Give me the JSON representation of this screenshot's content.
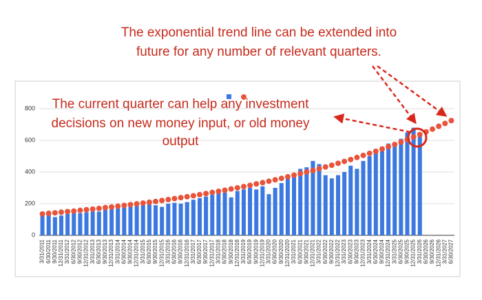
{
  "chart_data": {
    "type": "bar_line",
    "annotations": [
      "The exponential trend line can be extended into",
      "future for any number of relevant quarters.",
      "The current quarter can help any investment",
      "decisions on new money input, or old money",
      "output"
    ],
    "categories": [
      "3/31/2011",
      "6/30/2011",
      "9/30/2011",
      "12/31/2011",
      "3/31/2012",
      "6/30/2012",
      "9/30/2012",
      "12/31/2012",
      "3/31/2013",
      "6/30/2013",
      "9/30/2013",
      "12/31/2013",
      "3/31/2014",
      "6/30/2014",
      "9/30/2014",
      "12/31/2014",
      "3/31/2015",
      "6/30/2015",
      "9/30/2015",
      "12/31/2015",
      "3/31/2016",
      "6/30/2016",
      "9/30/2016",
      "12/31/2016",
      "3/31/2017",
      "6/30/2017",
      "9/30/2017",
      "12/31/2017",
      "3/31/2018",
      "6/30/2018",
      "9/30/2018",
      "12/31/2018",
      "3/31/2019",
      "6/30/2019",
      "9/30/2019",
      "12/31/2019",
      "3/31/2020",
      "6/30/2020",
      "9/30/2020",
      "12/31/2020",
      "3/31/2021",
      "6/30/2021",
      "9/30/2021",
      "12/31/2021",
      "3/31/2022",
      "6/30/2022",
      "9/30/2022",
      "12/31/2022",
      "3/31/2023",
      "6/30/2023",
      "9/30/2023",
      "12/31/2023",
      "3/31/2024",
      "6/30/2024",
      "9/30/2024",
      "12/31/2024",
      "3/31/2025",
      "6/30/2025",
      "9/30/2025",
      "12/31/2025",
      "3/31/2026",
      "6/30/2026",
      "9/30/2026",
      "12/31/2026",
      "3/31/2027",
      "6/30/2027"
    ],
    "series": [
      {
        "type": "bar",
        "color": "#3b78e0",
        "values": [
          125,
          130,
          115,
          125,
          135,
          140,
          140,
          145,
          150,
          150,
          160,
          165,
          170,
          175,
          180,
          185,
          190,
          195,
          190,
          180,
          200,
          205,
          200,
          210,
          225,
          235,
          245,
          255,
          265,
          270,
          240,
          280,
          290,
          300,
          290,
          310,
          260,
          300,
          330,
          360,
          390,
          420,
          430,
          470,
          450,
          380,
          360,
          380,
          400,
          440,
          420,
          470,
          500,
          540,
          560,
          580,
          580,
          610,
          650,
          680,
          640,
          null,
          null,
          null,
          null,
          null
        ]
      },
      {
        "type": "dots",
        "color": "#e8533a",
        "values": [
          135,
          139,
          142,
          146,
          150,
          153,
          158,
          162,
          166,
          170,
          175,
          179,
          184,
          189,
          194,
          199,
          204,
          209,
          214,
          220,
          226,
          232,
          238,
          244,
          250,
          257,
          264,
          271,
          278,
          285,
          293,
          300,
          308,
          316,
          325,
          333,
          342,
          351,
          360,
          370,
          380,
          390,
          400,
          410,
          421,
          432,
          443,
          455,
          467,
          479,
          492,
          505,
          518,
          531,
          545,
          560,
          574,
          589,
          605,
          621,
          637,
          654,
          671,
          689,
          707,
          725
        ]
      }
    ],
    "ylim": [
      0,
      800
    ],
    "yticks": [
      0,
      200,
      400,
      600,
      800
    ],
    "grid": true
  }
}
